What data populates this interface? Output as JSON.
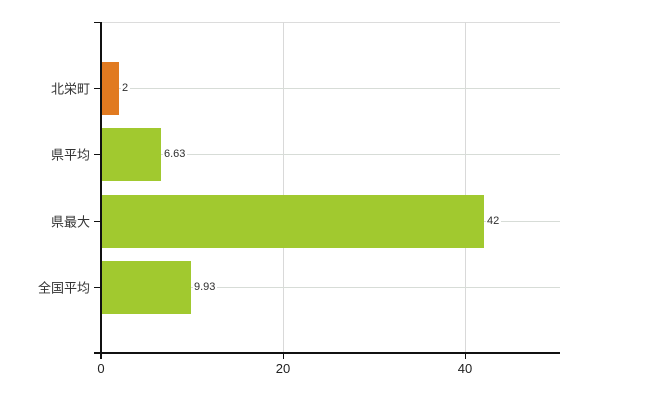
{
  "page": {
    "background_color": "#ffffff"
  },
  "chart_data": {
    "type": "bar",
    "orientation": "horizontal",
    "title": "",
    "xlabel": "",
    "ylabel": "",
    "categories": [
      "北栄町",
      "県平均",
      "県最大",
      "全国平均"
    ],
    "values": [
      2,
      6.63,
      42,
      9.93
    ],
    "value_labels": [
      "2",
      "6.63",
      "42",
      "9.93"
    ],
    "bar_colors": [
      "#e17a20",
      "#a1c92f",
      "#a1c92f",
      "#a1c92f"
    ],
    "xlim": [
      0,
      50.4
    ],
    "xticks": [
      0,
      20,
      40
    ],
    "xtick_labels": [
      "0",
      "20",
      "40"
    ],
    "grid": true,
    "legend": false,
    "colors": {
      "axis": "#111111",
      "grid_horizontal": "#d7dcd7",
      "grid_vertical": "#d9d9d9",
      "category_text": "#333333",
      "value_text": "#2f2f2f",
      "tick_text": "#222222",
      "highlight_bar": "#e17a20",
      "default_bar": "#a1c92f"
    }
  }
}
